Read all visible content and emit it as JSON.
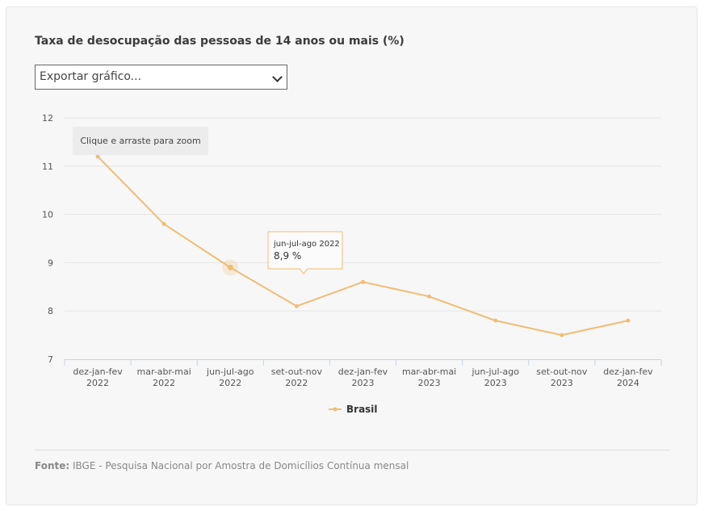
{
  "header": {
    "title": "Taxa de desocupação das pessoas de 14 anos ou mais (%)"
  },
  "export_select": {
    "selected": "Exportar gráfico..."
  },
  "zoom_hint": "Clique e arraste para zoom",
  "tooltip": {
    "category": "jun-jul-ago 2022",
    "value": "8,9 %"
  },
  "footer": {
    "label": "Fonte:",
    "text": "IBGE - Pesquisa Nacional por Amostra de Domicílios Contínua mensal"
  },
  "colors": {
    "series": "#f0bd75",
    "grid": "#e6e6e6"
  },
  "chart_data": {
    "type": "line",
    "title": "Taxa de desocupação das pessoas de 14 anos ou mais (%)",
    "categories": [
      [
        "dez-jan-fev",
        "2022"
      ],
      [
        "mar-abr-mai",
        "2022"
      ],
      [
        "jun-jul-ago",
        "2022"
      ],
      [
        "set-out-nov",
        "2022"
      ],
      [
        "dez-jan-fev",
        "2023"
      ],
      [
        "mar-abr-mai",
        "2023"
      ],
      [
        "jun-jul-ago",
        "2023"
      ],
      [
        "set-out-nov",
        "2023"
      ],
      [
        "dez-jan-fev",
        "2024"
      ]
    ],
    "series": [
      {
        "name": "Brasil",
        "values": [
          11.2,
          9.8,
          8.9,
          8.1,
          8.6,
          8.3,
          7.8,
          7.5,
          7.8
        ]
      }
    ],
    "yticks": [
      "12",
      "11",
      "10",
      "9",
      "8",
      "7"
    ],
    "ylim": [
      7,
      12
    ],
    "xlabel": "",
    "ylabel": "",
    "legend": "bottom-center",
    "highlighted_index": 2
  }
}
